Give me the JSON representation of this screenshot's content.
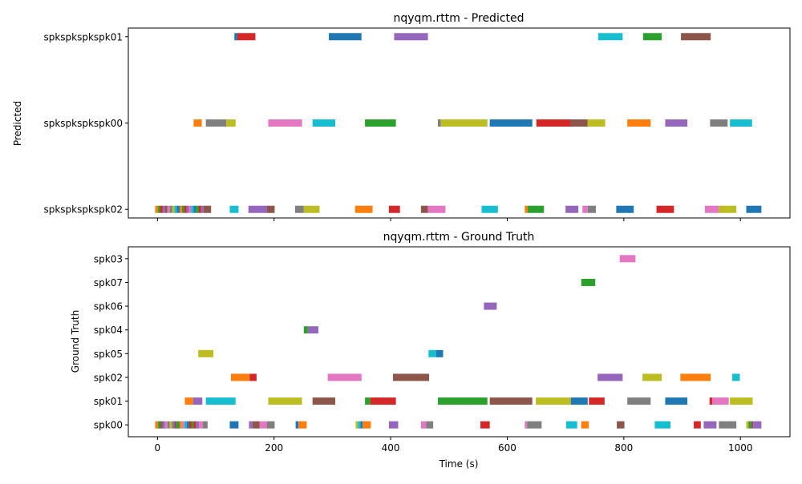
{
  "chart_data": [
    {
      "type": "timeline",
      "title": "nqyqm.rttm - Predicted",
      "xlabel": "",
      "ylabel": "Predicted",
      "xlim": [
        -50,
        1085
      ],
      "x_ticks": [
        0,
        200,
        400,
        600,
        800,
        1000
      ],
      "show_x_tick_labels": false,
      "rows": [
        "spkspkspkspk02",
        "spkspkspkspk00",
        "spkspkspkspk01"
      ],
      "segments": [
        {
          "row": 2,
          "start": 132,
          "end": 137,
          "color": "#1f77b4"
        },
        {
          "row": 2,
          "start": 137,
          "end": 168,
          "color": "#d62728"
        },
        {
          "row": 2,
          "start": 294,
          "end": 350,
          "color": "#1f77b4"
        },
        {
          "row": 2,
          "start": 406,
          "end": 464,
          "color": "#9467bd"
        },
        {
          "row": 2,
          "start": 756,
          "end": 798,
          "color": "#17becf"
        },
        {
          "row": 2,
          "start": 833,
          "end": 865,
          "color": "#2ca02c"
        },
        {
          "row": 2,
          "start": 898,
          "end": 949,
          "color": "#8c564b"
        },
        {
          "row": 1,
          "start": 62,
          "end": 76,
          "color": "#ff7f0e"
        },
        {
          "row": 1,
          "start": 83,
          "end": 118,
          "color": "#7f7f7f"
        },
        {
          "row": 1,
          "start": 118,
          "end": 134,
          "color": "#bcbd22"
        },
        {
          "row": 1,
          "start": 190,
          "end": 248,
          "color": "#e377c2"
        },
        {
          "row": 1,
          "start": 266,
          "end": 305,
          "color": "#17becf"
        },
        {
          "row": 1,
          "start": 356,
          "end": 409,
          "color": "#2ca02c"
        },
        {
          "row": 1,
          "start": 481,
          "end": 486,
          "color": "#7f7f7f"
        },
        {
          "row": 1,
          "start": 486,
          "end": 566,
          "color": "#bcbd22"
        },
        {
          "row": 1,
          "start": 570,
          "end": 643,
          "color": "#1f77b4"
        },
        {
          "row": 1,
          "start": 650,
          "end": 708,
          "color": "#d62728"
        },
        {
          "row": 1,
          "start": 708,
          "end": 738,
          "color": "#8c564b"
        },
        {
          "row": 1,
          "start": 738,
          "end": 768,
          "color": "#bcbd22"
        },
        {
          "row": 1,
          "start": 806,
          "end": 846,
          "color": "#ff7f0e"
        },
        {
          "row": 1,
          "start": 871,
          "end": 909,
          "color": "#9467bd"
        },
        {
          "row": 1,
          "start": 948,
          "end": 978,
          "color": "#7f7f7f"
        },
        {
          "row": 1,
          "start": 982,
          "end": 1020,
          "color": "#17becf"
        },
        {
          "row": 0,
          "start": -4,
          "end": 1,
          "color": "#ff7f0e"
        },
        {
          "row": 0,
          "start": 1,
          "end": 5,
          "color": "#2ca02c"
        },
        {
          "row": 0,
          "start": 5,
          "end": 9,
          "color": "#d62728"
        },
        {
          "row": 0,
          "start": 9,
          "end": 13,
          "color": "#9467bd"
        },
        {
          "row": 0,
          "start": 13,
          "end": 17,
          "color": "#8c564b"
        },
        {
          "row": 0,
          "start": 17,
          "end": 21,
          "color": "#e377c2"
        },
        {
          "row": 0,
          "start": 21,
          "end": 25,
          "color": "#7f7f7f"
        },
        {
          "row": 0,
          "start": 25,
          "end": 29,
          "color": "#bcbd22"
        },
        {
          "row": 0,
          "start": 29,
          "end": 33,
          "color": "#17becf"
        },
        {
          "row": 0,
          "start": 33,
          "end": 38,
          "color": "#1f77b4"
        },
        {
          "row": 0,
          "start": 38,
          "end": 42,
          "color": "#ff7f0e"
        },
        {
          "row": 0,
          "start": 42,
          "end": 46,
          "color": "#2ca02c"
        },
        {
          "row": 0,
          "start": 46,
          "end": 50,
          "color": "#d62728"
        },
        {
          "row": 0,
          "start": 50,
          "end": 54,
          "color": "#9467bd"
        },
        {
          "row": 0,
          "start": 54,
          "end": 58,
          "color": "#e377c2"
        },
        {
          "row": 0,
          "start": 58,
          "end": 62,
          "color": "#17becf"
        },
        {
          "row": 0,
          "start": 62,
          "end": 66,
          "color": "#1f77b4"
        },
        {
          "row": 0,
          "start": 66,
          "end": 71,
          "color": "#2ca02c"
        },
        {
          "row": 0,
          "start": 71,
          "end": 75,
          "color": "#d62728"
        },
        {
          "row": 0,
          "start": 75,
          "end": 79,
          "color": "#9467bd"
        },
        {
          "row": 0,
          "start": 79,
          "end": 92,
          "color": "#8c564b"
        },
        {
          "row": 0,
          "start": 124,
          "end": 139,
          "color": "#17becf"
        },
        {
          "row": 0,
          "start": 156,
          "end": 188,
          "color": "#9467bd"
        },
        {
          "row": 0,
          "start": 188,
          "end": 201,
          "color": "#8c564b"
        },
        {
          "row": 0,
          "start": 236,
          "end": 251,
          "color": "#7f7f7f"
        },
        {
          "row": 0,
          "start": 251,
          "end": 278,
          "color": "#bcbd22"
        },
        {
          "row": 0,
          "start": 339,
          "end": 369,
          "color": "#ff7f0e"
        },
        {
          "row": 0,
          "start": 397,
          "end": 416,
          "color": "#d62728"
        },
        {
          "row": 0,
          "start": 452,
          "end": 464,
          "color": "#8c564b"
        },
        {
          "row": 0,
          "start": 464,
          "end": 494,
          "color": "#e377c2"
        },
        {
          "row": 0,
          "start": 556,
          "end": 584,
          "color": "#17becf"
        },
        {
          "row": 0,
          "start": 630,
          "end": 635,
          "color": "#ff7f0e"
        },
        {
          "row": 0,
          "start": 635,
          "end": 663,
          "color": "#2ca02c"
        },
        {
          "row": 0,
          "start": 700,
          "end": 722,
          "color": "#9467bd"
        },
        {
          "row": 0,
          "start": 729,
          "end": 738,
          "color": "#e377c2"
        },
        {
          "row": 0,
          "start": 738,
          "end": 752,
          "color": "#7f7f7f"
        },
        {
          "row": 0,
          "start": 787,
          "end": 817,
          "color": "#1f77b4"
        },
        {
          "row": 0,
          "start": 856,
          "end": 886,
          "color": "#d62728"
        },
        {
          "row": 0,
          "start": 939,
          "end": 963,
          "color": "#e377c2"
        },
        {
          "row": 0,
          "start": 963,
          "end": 993,
          "color": "#bcbd22"
        },
        {
          "row": 0,
          "start": 1010,
          "end": 1036,
          "color": "#1f77b4"
        }
      ]
    },
    {
      "type": "timeline",
      "title": "nqyqm.rttm - Ground Truth",
      "xlabel": "Time (s)",
      "ylabel": "Ground Truth",
      "xlim": [
        -50,
        1085
      ],
      "x_ticks": [
        0,
        200,
        400,
        600,
        800,
        1000
      ],
      "show_x_tick_labels": true,
      "rows": [
        "spk00",
        "spk01",
        "spk02",
        "spk05",
        "spk04",
        "spk06",
        "spk07",
        "spk03"
      ],
      "segments": [
        {
          "row": 7,
          "start": 793,
          "end": 820,
          "color": "#e377c2"
        },
        {
          "row": 6,
          "start": 727,
          "end": 751,
          "color": "#2ca02c"
        },
        {
          "row": 5,
          "start": 560,
          "end": 582,
          "color": "#9467bd"
        },
        {
          "row": 4,
          "start": 251,
          "end": 258,
          "color": "#2ca02c"
        },
        {
          "row": 4,
          "start": 258,
          "end": 276,
          "color": "#9467bd"
        },
        {
          "row": 3,
          "start": 70,
          "end": 96,
          "color": "#bcbd22"
        },
        {
          "row": 3,
          "start": 465,
          "end": 478,
          "color": "#17becf"
        },
        {
          "row": 3,
          "start": 478,
          "end": 490,
          "color": "#1f77b4"
        },
        {
          "row": 2,
          "start": 126,
          "end": 158,
          "color": "#ff7f0e"
        },
        {
          "row": 2,
          "start": 158,
          "end": 170,
          "color": "#d62728"
        },
        {
          "row": 2,
          "start": 292,
          "end": 350,
          "color": "#e377c2"
        },
        {
          "row": 2,
          "start": 404,
          "end": 466,
          "color": "#8c564b"
        },
        {
          "row": 2,
          "start": 755,
          "end": 798,
          "color": "#9467bd"
        },
        {
          "row": 2,
          "start": 832,
          "end": 865,
          "color": "#bcbd22"
        },
        {
          "row": 2,
          "start": 897,
          "end": 949,
          "color": "#ff7f0e"
        },
        {
          "row": 2,
          "start": 986,
          "end": 999,
          "color": "#17becf"
        },
        {
          "row": 1,
          "start": 47,
          "end": 61,
          "color": "#ff7f0e"
        },
        {
          "row": 1,
          "start": 61,
          "end": 77,
          "color": "#9467bd"
        },
        {
          "row": 1,
          "start": 83,
          "end": 134,
          "color": "#17becf"
        },
        {
          "row": 1,
          "start": 190,
          "end": 248,
          "color": "#bcbd22"
        },
        {
          "row": 1,
          "start": 266,
          "end": 305,
          "color": "#8c564b"
        },
        {
          "row": 1,
          "start": 356,
          "end": 365,
          "color": "#2ca02c"
        },
        {
          "row": 1,
          "start": 365,
          "end": 409,
          "color": "#d62728"
        },
        {
          "row": 1,
          "start": 481,
          "end": 566,
          "color": "#2ca02c"
        },
        {
          "row": 1,
          "start": 570,
          "end": 643,
          "color": "#8c564b"
        },
        {
          "row": 1,
          "start": 649,
          "end": 709,
          "color": "#bcbd22"
        },
        {
          "row": 1,
          "start": 709,
          "end": 738,
          "color": "#1f77b4"
        },
        {
          "row": 1,
          "start": 740,
          "end": 767,
          "color": "#d62728"
        },
        {
          "row": 1,
          "start": 806,
          "end": 846,
          "color": "#7f7f7f"
        },
        {
          "row": 1,
          "start": 871,
          "end": 909,
          "color": "#1f77b4"
        },
        {
          "row": 1,
          "start": 947,
          "end": 952,
          "color": "#d62728"
        },
        {
          "row": 1,
          "start": 952,
          "end": 980,
          "color": "#e377c2"
        },
        {
          "row": 1,
          "start": 982,
          "end": 1021,
          "color": "#bcbd22"
        },
        {
          "row": 0,
          "start": -4,
          "end": 1,
          "color": "#ff7f0e"
        },
        {
          "row": 0,
          "start": 1,
          "end": 5,
          "color": "#2ca02c"
        },
        {
          "row": 0,
          "start": 5,
          "end": 9,
          "color": "#8c564b"
        },
        {
          "row": 0,
          "start": 9,
          "end": 13,
          "color": "#9467bd"
        },
        {
          "row": 0,
          "start": 13,
          "end": 17,
          "color": "#e377c2"
        },
        {
          "row": 0,
          "start": 17,
          "end": 21,
          "color": "#7f7f7f"
        },
        {
          "row": 0,
          "start": 21,
          "end": 25,
          "color": "#bcbd22"
        },
        {
          "row": 0,
          "start": 25,
          "end": 29,
          "color": "#9467bd"
        },
        {
          "row": 0,
          "start": 29,
          "end": 33,
          "color": "#8c564b"
        },
        {
          "row": 0,
          "start": 33,
          "end": 38,
          "color": "#2ca02c"
        },
        {
          "row": 0,
          "start": 38,
          "end": 42,
          "color": "#ff7f0e"
        },
        {
          "row": 0,
          "start": 42,
          "end": 46,
          "color": "#e377c2"
        },
        {
          "row": 0,
          "start": 46,
          "end": 50,
          "color": "#17becf"
        },
        {
          "row": 0,
          "start": 50,
          "end": 54,
          "color": "#1f77b4"
        },
        {
          "row": 0,
          "start": 54,
          "end": 58,
          "color": "#d62728"
        },
        {
          "row": 0,
          "start": 58,
          "end": 62,
          "color": "#2ca02c"
        },
        {
          "row": 0,
          "start": 62,
          "end": 66,
          "color": "#d62728"
        },
        {
          "row": 0,
          "start": 66,
          "end": 71,
          "color": "#9467bd"
        },
        {
          "row": 0,
          "start": 71,
          "end": 78,
          "color": "#e377c2"
        },
        {
          "row": 0,
          "start": 78,
          "end": 86,
          "color": "#7f7f7f"
        },
        {
          "row": 0,
          "start": 124,
          "end": 139,
          "color": "#1f77b4"
        },
        {
          "row": 0,
          "start": 157,
          "end": 163,
          "color": "#9467bd"
        },
        {
          "row": 0,
          "start": 163,
          "end": 175,
          "color": "#8c564b"
        },
        {
          "row": 0,
          "start": 175,
          "end": 188,
          "color": "#e377c2"
        },
        {
          "row": 0,
          "start": 188,
          "end": 201,
          "color": "#7f7f7f"
        },
        {
          "row": 0,
          "start": 237,
          "end": 242,
          "color": "#1f77b4"
        },
        {
          "row": 0,
          "start": 242,
          "end": 256,
          "color": "#ff7f0e"
        },
        {
          "row": 0,
          "start": 340,
          "end": 344,
          "color": "#bcbd22"
        },
        {
          "row": 0,
          "start": 344,
          "end": 348,
          "color": "#17becf"
        },
        {
          "row": 0,
          "start": 348,
          "end": 352,
          "color": "#1f77b4"
        },
        {
          "row": 0,
          "start": 352,
          "end": 366,
          "color": "#ff7f0e"
        },
        {
          "row": 0,
          "start": 397,
          "end": 413,
          "color": "#9467bd"
        },
        {
          "row": 0,
          "start": 452,
          "end": 461,
          "color": "#e377c2"
        },
        {
          "row": 0,
          "start": 461,
          "end": 473,
          "color": "#7f7f7f"
        },
        {
          "row": 0,
          "start": 554,
          "end": 570,
          "color": "#d62728"
        },
        {
          "row": 0,
          "start": 630,
          "end": 634,
          "color": "#e377c2"
        },
        {
          "row": 0,
          "start": 634,
          "end": 659,
          "color": "#7f7f7f"
        },
        {
          "row": 0,
          "start": 701,
          "end": 720,
          "color": "#17becf"
        },
        {
          "row": 0,
          "start": 727,
          "end": 740,
          "color": "#ff7f0e"
        },
        {
          "row": 0,
          "start": 788,
          "end": 801,
          "color": "#8c564b"
        },
        {
          "row": 0,
          "start": 853,
          "end": 880,
          "color": "#17becf"
        },
        {
          "row": 0,
          "start": 920,
          "end": 932,
          "color": "#d62728"
        },
        {
          "row": 0,
          "start": 937,
          "end": 959,
          "color": "#9467bd"
        },
        {
          "row": 0,
          "start": 963,
          "end": 993,
          "color": "#7f7f7f"
        },
        {
          "row": 0,
          "start": 1010,
          "end": 1014,
          "color": "#bcbd22"
        },
        {
          "row": 0,
          "start": 1014,
          "end": 1018,
          "color": "#2ca02c"
        },
        {
          "row": 0,
          "start": 1018,
          "end": 1022,
          "color": "#8c564b"
        },
        {
          "row": 0,
          "start": 1022,
          "end": 1036,
          "color": "#9467bd"
        }
      ]
    }
  ]
}
